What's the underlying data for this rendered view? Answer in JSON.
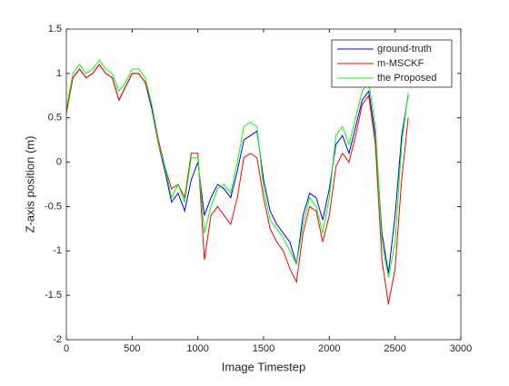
{
  "chart_data": {
    "type": "line",
    "xlabel": "Image Timestep",
    "ylabel": "Z-axis position (m)",
    "x": [
      0,
      50,
      100,
      150,
      200,
      250,
      300,
      350,
      400,
      450,
      500,
      550,
      600,
      650,
      700,
      750,
      800,
      850,
      900,
      950,
      1000,
      1050,
      1100,
      1150,
      1200,
      1250,
      1300,
      1350,
      1400,
      1450,
      1500,
      1550,
      1600,
      1650,
      1700,
      1750,
      1800,
      1850,
      1900,
      1950,
      2000,
      2050,
      2100,
      2150,
      2200,
      2250,
      2300,
      2350,
      2400,
      2450,
      2500,
      2550,
      2600
    ],
    "series": [
      {
        "name": "ground-truth",
        "color": "#0000ff",
        "values": [
          0.6,
          0.95,
          1.05,
          0.95,
          1.0,
          1.1,
          1.0,
          0.95,
          0.7,
          0.85,
          1.0,
          1.0,
          0.9,
          0.6,
          0.2,
          -0.1,
          -0.45,
          -0.35,
          -0.55,
          -0.2,
          0.0,
          -0.6,
          -0.4,
          -0.25,
          -0.3,
          -0.4,
          -0.1,
          0.25,
          0.3,
          0.35,
          -0.2,
          -0.55,
          -0.7,
          -0.8,
          -0.9,
          -1.15,
          -0.6,
          -0.35,
          -0.4,
          -0.65,
          -0.3,
          0.2,
          0.3,
          0.1,
          0.4,
          0.7,
          0.8,
          0.3,
          -0.8,
          -1.25,
          -0.6,
          0.3,
          0.75
        ]
      },
      {
        "name": "m-MSCKF",
        "color": "#ff0000",
        "values": [
          0.55,
          0.95,
          1.05,
          0.95,
          1.0,
          1.1,
          1.0,
          0.95,
          0.7,
          0.85,
          1.0,
          1.0,
          0.9,
          0.65,
          0.25,
          -0.05,
          -0.3,
          -0.25,
          -0.4,
          0.1,
          0.1,
          -1.1,
          -0.6,
          -0.5,
          -0.6,
          -0.7,
          -0.4,
          0.05,
          0.1,
          0.05,
          -0.4,
          -0.75,
          -0.9,
          -1.0,
          -1.2,
          -1.35,
          -0.8,
          -0.5,
          -0.55,
          -0.9,
          -0.6,
          -0.05,
          0.1,
          0.0,
          0.3,
          0.65,
          0.75,
          0.2,
          -1.1,
          -1.6,
          -1.2,
          -0.2,
          0.5
        ]
      },
      {
        "name": "the Proposed",
        "color": "#00ff00",
        "values": [
          0.6,
          1.0,
          1.1,
          1.0,
          1.05,
          1.15,
          1.05,
          1.0,
          0.8,
          0.9,
          1.05,
          1.05,
          0.95,
          0.65,
          0.2,
          -0.05,
          -0.4,
          -0.25,
          -0.45,
          0.05,
          0.05,
          -0.8,
          -0.5,
          -0.3,
          -0.25,
          -0.35,
          0.0,
          0.4,
          0.45,
          0.4,
          -0.3,
          -0.65,
          -0.75,
          -0.85,
          -1.0,
          -1.15,
          -0.7,
          -0.4,
          -0.5,
          -0.8,
          -0.4,
          0.3,
          0.4,
          0.2,
          0.5,
          0.8,
          0.9,
          0.4,
          -0.9,
          -1.3,
          -0.9,
          0.2,
          0.78
        ]
      }
    ],
    "xlim": [
      0,
      3000
    ],
    "xticks": [
      0,
      500,
      1000,
      1500,
      2000,
      2500,
      3000
    ],
    "ylim": [
      -2,
      1.5
    ],
    "yticks": [
      -2,
      -1.5,
      -1,
      -0.5,
      0,
      0.5,
      1,
      1.5
    ],
    "legend": "upper right",
    "grid": false
  }
}
